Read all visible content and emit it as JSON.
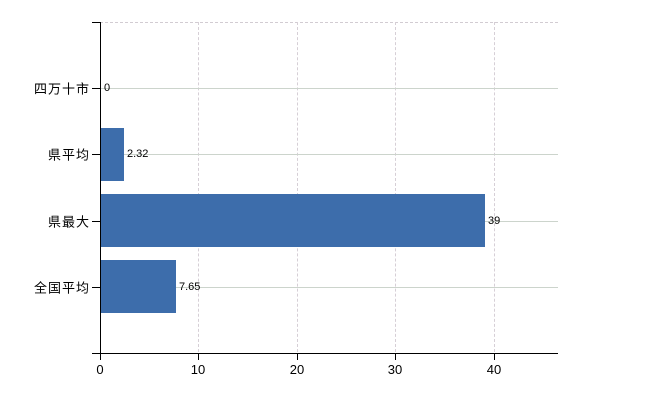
{
  "chart_data": {
    "type": "bar",
    "orientation": "horizontal",
    "title": "",
    "xlabel": "",
    "ylabel": "",
    "categories": [
      "四万十市",
      "県平均",
      "県最大",
      "全国平均"
    ],
    "values": [
      0,
      2.32,
      39,
      7.65
    ],
    "value_labels": [
      "0",
      "2.32",
      "39",
      "7.65"
    ],
    "x_ticks": [
      0,
      10,
      20,
      30,
      40
    ],
    "x_tick_labels": [
      "0",
      "10",
      "20",
      "30",
      "40"
    ],
    "xlim": [
      0,
      46.5
    ],
    "grid": true,
    "legend": false,
    "colors": {
      "bar": "#3d6dab",
      "axis": "#000000",
      "gridline_horizontal": "#ccd4cc",
      "gridline_vertical": "#d6cfd6",
      "top_border": "#d2ccd2",
      "text": "#000000",
      "background": "#ffffff"
    }
  }
}
